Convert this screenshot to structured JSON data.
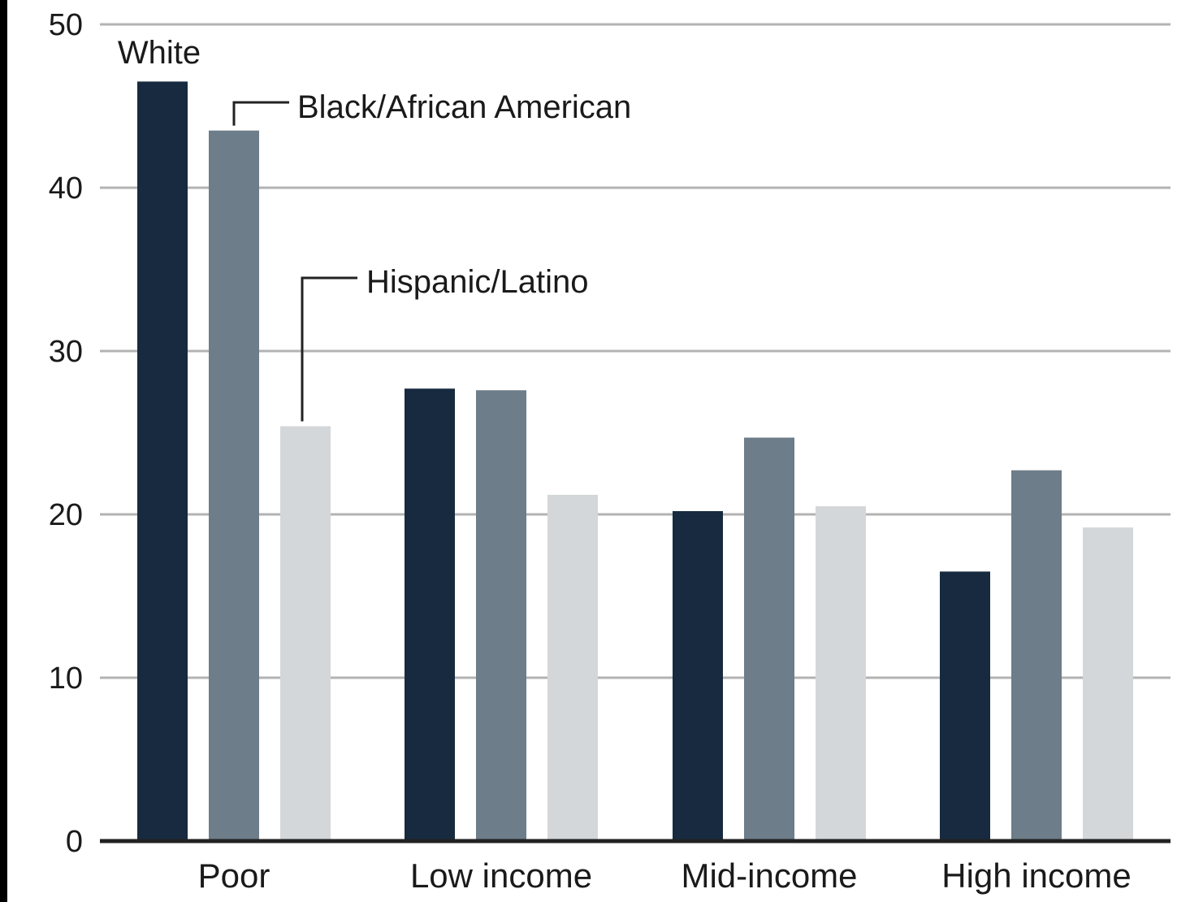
{
  "chart_data": {
    "type": "bar",
    "categories": [
      "Poor",
      "Low income",
      "Mid-income",
      "High income"
    ],
    "series": [
      {
        "name": "White",
        "values": [
          46.5,
          27.7,
          20.2,
          16.5
        ]
      },
      {
        "name": "Black/African American",
        "values": [
          43.5,
          27.6,
          24.7,
          22.7
        ]
      },
      {
        "name": "Hispanic/Latino",
        "values": [
          25.4,
          21.2,
          20.5,
          19.2
        ]
      }
    ],
    "title": "",
    "xlabel": "",
    "ylabel": "",
    "ylim": [
      0,
      50
    ],
    "yticks": [
      "0",
      "10",
      "20",
      "30",
      "40",
      "50"
    ],
    "grid": true,
    "legend": "direct labels on first category bars",
    "colors": [
      "#172a3f",
      "#6d7d89",
      "#d4d7da"
    ]
  }
}
